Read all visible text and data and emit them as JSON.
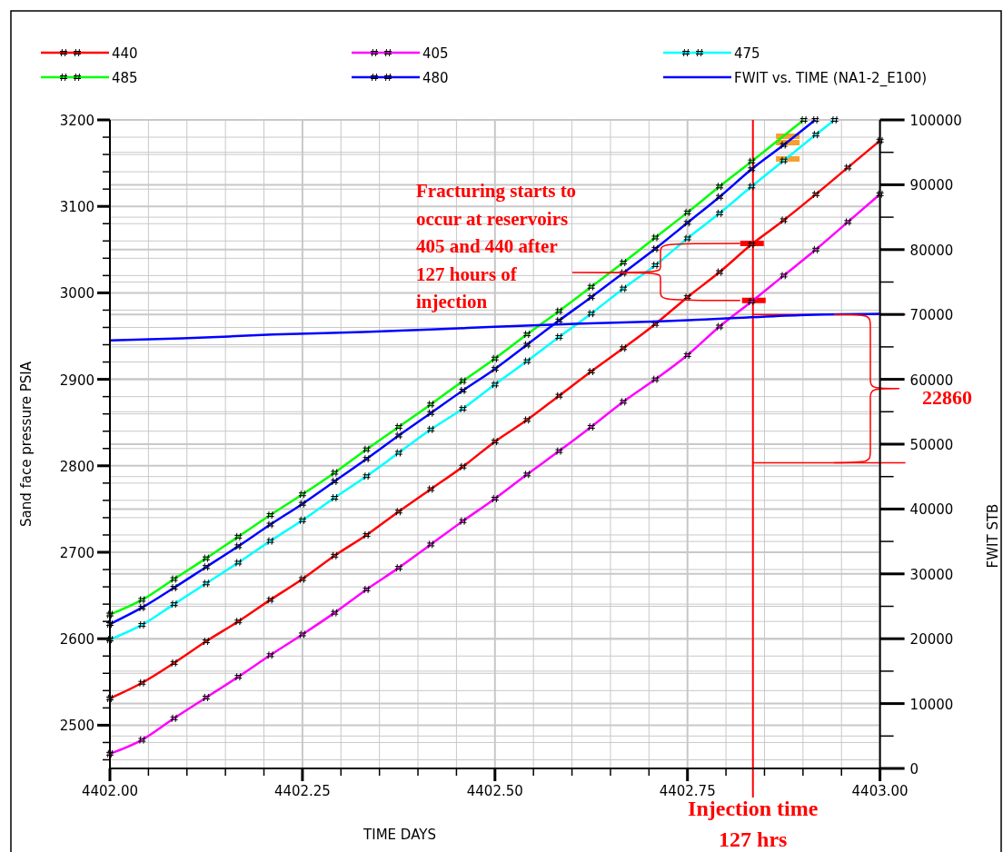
{
  "chart_data": {
    "type": "line",
    "xlabel": "TIME   DAYS",
    "ylabel": "Sand face pressure   PSIA",
    "y2label": "FWIT   STB",
    "xlim": [
      4402,
      4403
    ],
    "xticks": [
      {
        "value": 4402,
        "label": "4402.00"
      },
      {
        "value": 4402.05,
        "label": null
      },
      {
        "value": 4402.1,
        "label": null
      },
      {
        "value": 4402.15,
        "label": null
      },
      {
        "value": 4402.2,
        "label": null
      },
      {
        "value": 4402.25,
        "label": "4402.25"
      },
      {
        "value": 4402.3,
        "label": null
      },
      {
        "value": 4402.35,
        "label": null
      },
      {
        "value": 4402.4,
        "label": null
      },
      {
        "value": 4402.45,
        "label": null
      },
      {
        "value": 4402.5,
        "label": "4402.50"
      },
      {
        "value": 4402.55,
        "label": null
      },
      {
        "value": 4402.6,
        "label": null
      },
      {
        "value": 4402.65,
        "label": null
      },
      {
        "value": 4402.7,
        "label": null
      },
      {
        "value": 4402.75,
        "label": "4402.75"
      },
      {
        "value": 4402.8,
        "label": null
      },
      {
        "value": 4402.85,
        "label": null
      },
      {
        "value": 4402.9,
        "label": null
      },
      {
        "value": 4402.95,
        "label": null
      },
      {
        "value": 4403,
        "label": "4403.00"
      }
    ],
    "ylim": [
      2450,
      3200
    ],
    "yticks": [
      {
        "value": 2460,
        "label": null
      },
      {
        "value": 2480,
        "label": null
      },
      2500,
      {
        "value": 2520,
        "label": null
      },
      {
        "value": 2540,
        "label": null
      },
      {
        "value": 2560,
        "label": null
      },
      {
        "value": 2580,
        "label": null
      },
      2600,
      {
        "value": 2620,
        "label": null
      },
      {
        "value": 2640,
        "label": null
      },
      {
        "value": 2660,
        "label": null
      },
      {
        "value": 2680,
        "label": null
      },
      2700,
      {
        "value": 2720,
        "label": null
      },
      {
        "value": 2740,
        "label": null
      },
      {
        "value": 2760,
        "label": null
      },
      {
        "value": 2780,
        "label": null
      },
      2800,
      {
        "value": 2820,
        "label": null
      },
      {
        "value": 2840,
        "label": null
      },
      {
        "value": 2860,
        "label": null
      },
      {
        "value": 2880,
        "label": null
      },
      2900,
      {
        "value": 2920,
        "label": null
      },
      {
        "value": 2940,
        "label": null
      },
      {
        "value": 2960,
        "label": null
      },
      {
        "value": 2980,
        "label": null
      },
      3000,
      {
        "value": 3020,
        "label": null
      },
      {
        "value": 3040,
        "label": null
      },
      {
        "value": 3060,
        "label": null
      },
      {
        "value": 3080,
        "label": null
      },
      3100,
      {
        "value": 3120,
        "label": null
      },
      {
        "value": 3140,
        "label": null
      },
      {
        "value": 3160,
        "label": null
      },
      {
        "value": 3180,
        "label": null
      },
      3200
    ],
    "y2lim": [
      0,
      100000
    ],
    "y2ticks": [
      0,
      {
        "value": 5000,
        "label": null
      },
      10000,
      {
        "value": 15000,
        "label": null
      },
      20000,
      {
        "value": 25000,
        "label": null
      },
      30000,
      {
        "value": 35000,
        "label": null
      },
      40000,
      {
        "value": 45000,
        "label": null
      },
      50000,
      {
        "value": 55000,
        "label": null
      },
      60000,
      {
        "value": 65000,
        "label": null
      },
      70000,
      {
        "value": 75000,
        "label": null
      },
      80000,
      {
        "value": 85000,
        "label": null
      },
      90000,
      {
        "value": 95000,
        "label": null
      },
      100000
    ],
    "grid": true,
    "legend": "top",
    "marker": "cross",
    "line_style": "solid",
    "series": [
      {
        "name": "440",
        "color": "#ff0000",
        "x": [
          4402,
          4402.0417,
          4402.0833,
          4402.125,
          4402.1667,
          4402.2083,
          4402.25,
          4402.2917,
          4402.3333,
          4402.375,
          4402.4167,
          4402.4583,
          4402.5,
          4402.5417,
          4402.5833,
          4402.625,
          4402.6667,
          4402.7083,
          4402.75,
          4402.7917,
          4402.8333,
          4402.875,
          4402.9167,
          4402.9583,
          4403
        ],
        "values": [
          2531,
          2549,
          2572,
          2597,
          2620,
          2645,
          2669,
          2696,
          2720,
          2747,
          2773,
          2799,
          2828,
          2853,
          2881,
          2909,
          2936,
          2964,
          2995,
          3024,
          3056,
          3084,
          3114,
          3145,
          3176
        ]
      },
      {
        "name": "405",
        "color": "#ff00ff",
        "x": [
          4402,
          4402.0417,
          4402.0833,
          4402.125,
          4402.1667,
          4402.2083,
          4402.25,
          4402.2917,
          4402.3333,
          4402.375,
          4402.4167,
          4402.4583,
          4402.5,
          4402.5417,
          4402.5833,
          4402.625,
          4402.6667,
          4402.7083,
          4402.75,
          4402.7917,
          4402.8333,
          4402.875,
          4402.9167,
          4402.9583,
          4403
        ],
        "values": [
          2467,
          2483,
          2508,
          2532,
          2556,
          2581,
          2605,
          2630,
          2657,
          2682,
          2709,
          2736,
          2762,
          2790,
          2817,
          2845,
          2874,
          2900,
          2928,
          2961,
          2990,
          3020,
          3050,
          3082,
          3114
        ]
      },
      {
        "name": "475",
        "color": "#00ffff",
        "x": [
          4402,
          4402.0417,
          4402.0833,
          4402.125,
          4402.1667,
          4402.2083,
          4402.25,
          4402.2917,
          4402.3333,
          4402.375,
          4402.4167,
          4402.4583,
          4402.5,
          4402.5417,
          4402.5833,
          4402.625,
          4402.6667,
          4402.7083,
          4402.75,
          4402.7917,
          4402.8333,
          4402.875,
          4402.9167,
          4402.941
        ],
        "values": [
          2599,
          2616,
          2640,
          2664,
          2688,
          2713,
          2737,
          2763,
          2788,
          2815,
          2842,
          2866,
          2894,
          2921,
          2949,
          2976,
          3005,
          3032,
          3063,
          3092,
          3123,
          3153,
          3183,
          3200
        ]
      },
      {
        "name": "485",
        "color": "#00ff00",
        "x": [
          4402,
          4402.0417,
          4402.0833,
          4402.125,
          4402.1667,
          4402.2083,
          4402.25,
          4402.2917,
          4402.3333,
          4402.375,
          4402.4167,
          4402.4583,
          4402.5,
          4402.5417,
          4402.5833,
          4402.625,
          4402.6667,
          4402.7083,
          4402.75,
          4402.7917,
          4402.8333,
          4402.901
        ],
        "values": [
          2628,
          2645,
          2669,
          2693,
          2718,
          2743,
          2767,
          2792,
          2819,
          2845,
          2871,
          2898,
          2924,
          2952,
          2979,
          3007,
          3035,
          3064,
          3093,
          3123,
          3152,
          3200
        ]
      },
      {
        "name": "480",
        "color": "#0000ff",
        "x": [
          4402,
          4402.0417,
          4402.0833,
          4402.125,
          4402.1667,
          4402.2083,
          4402.25,
          4402.2917,
          4402.3333,
          4402.375,
          4402.4167,
          4402.4583,
          4402.5,
          4402.5417,
          4402.5833,
          4402.625,
          4402.6667,
          4402.7083,
          4402.75,
          4402.7917,
          4402.8333,
          4402.875,
          4402.916
        ],
        "values": [
          2617,
          2636,
          2659,
          2683,
          2707,
          2732,
          2756,
          2782,
          2808,
          2835,
          2861,
          2887,
          2912,
          2940,
          2968,
          2995,
          3023,
          3051,
          3081,
          3111,
          3143,
          3171,
          3200
        ]
      },
      {
        "name": "FWIT vs. TIME (NA1-2_E100)",
        "color": "#0000ff",
        "axis": "y2",
        "marker": "none",
        "x": [
          4402,
          4402.0935,
          4402.2115,
          4402.3294,
          4402.4238,
          4402.5,
          4402.6126,
          4402.707,
          4402.8014,
          4402.8957,
          4403
        ],
        "values": [
          66000,
          66300,
          66900,
          67300,
          67700,
          68100,
          68600,
          68900,
          69400,
          69900,
          70100
        ]
      }
    ],
    "ref_lines": [
      {
        "axis": "x",
        "value": 4402.835,
        "label": "Injection time 127 hrs",
        "color": "#ff0000"
      },
      {
        "axis": "y2",
        "value": 70000,
        "color": "#ff0000"
      },
      {
        "axis": "y2",
        "value": 47140,
        "color": "#ff0000"
      }
    ],
    "annotations": [
      "Fracturing starts to occur at reservoirs 405 and 440 after 127 hours of injection",
      "22860"
    ]
  }
}
